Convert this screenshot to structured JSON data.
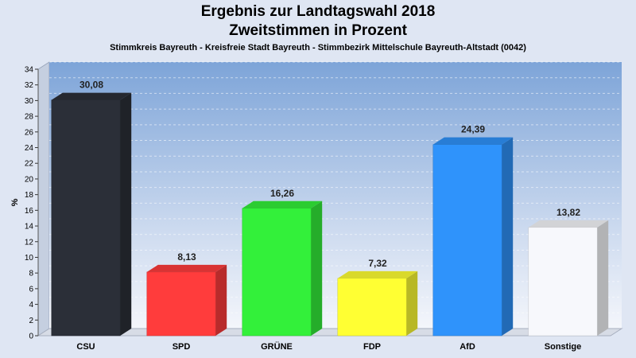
{
  "chart_data": {
    "type": "bar",
    "title": "Ergebnis zur Landtagswahl 2018",
    "title2": "Zweitstimmen in Prozent",
    "subtitle": "Stimmkreis Bayreuth - Kreisfreie Stadt Bayreuth - Stimmbezirk Mittelschule Bayreuth-Altstadt (0042)",
    "ylabel": "%",
    "ylim": [
      0,
      34
    ],
    "yticks": [
      0,
      2,
      4,
      6,
      8,
      10,
      12,
      14,
      16,
      18,
      20,
      22,
      24,
      26,
      28,
      30,
      32,
      34
    ],
    "grid": true,
    "categories": [
      "CSU",
      "SPD",
      "GRÜNE",
      "FDP",
      "AfD",
      "Sonstige"
    ],
    "values": [
      30.08,
      8.13,
      16.26,
      7.32,
      24.39,
      13.82
    ],
    "value_labels": [
      "30,08",
      "8,13",
      "16,26",
      "7,32",
      "24,39",
      "13,82"
    ],
    "colors": [
      "#2b2f38",
      "#ff3c3c",
      "#33f03a",
      "#ffff33",
      "#2f93fb",
      "#f7f8fc"
    ]
  }
}
